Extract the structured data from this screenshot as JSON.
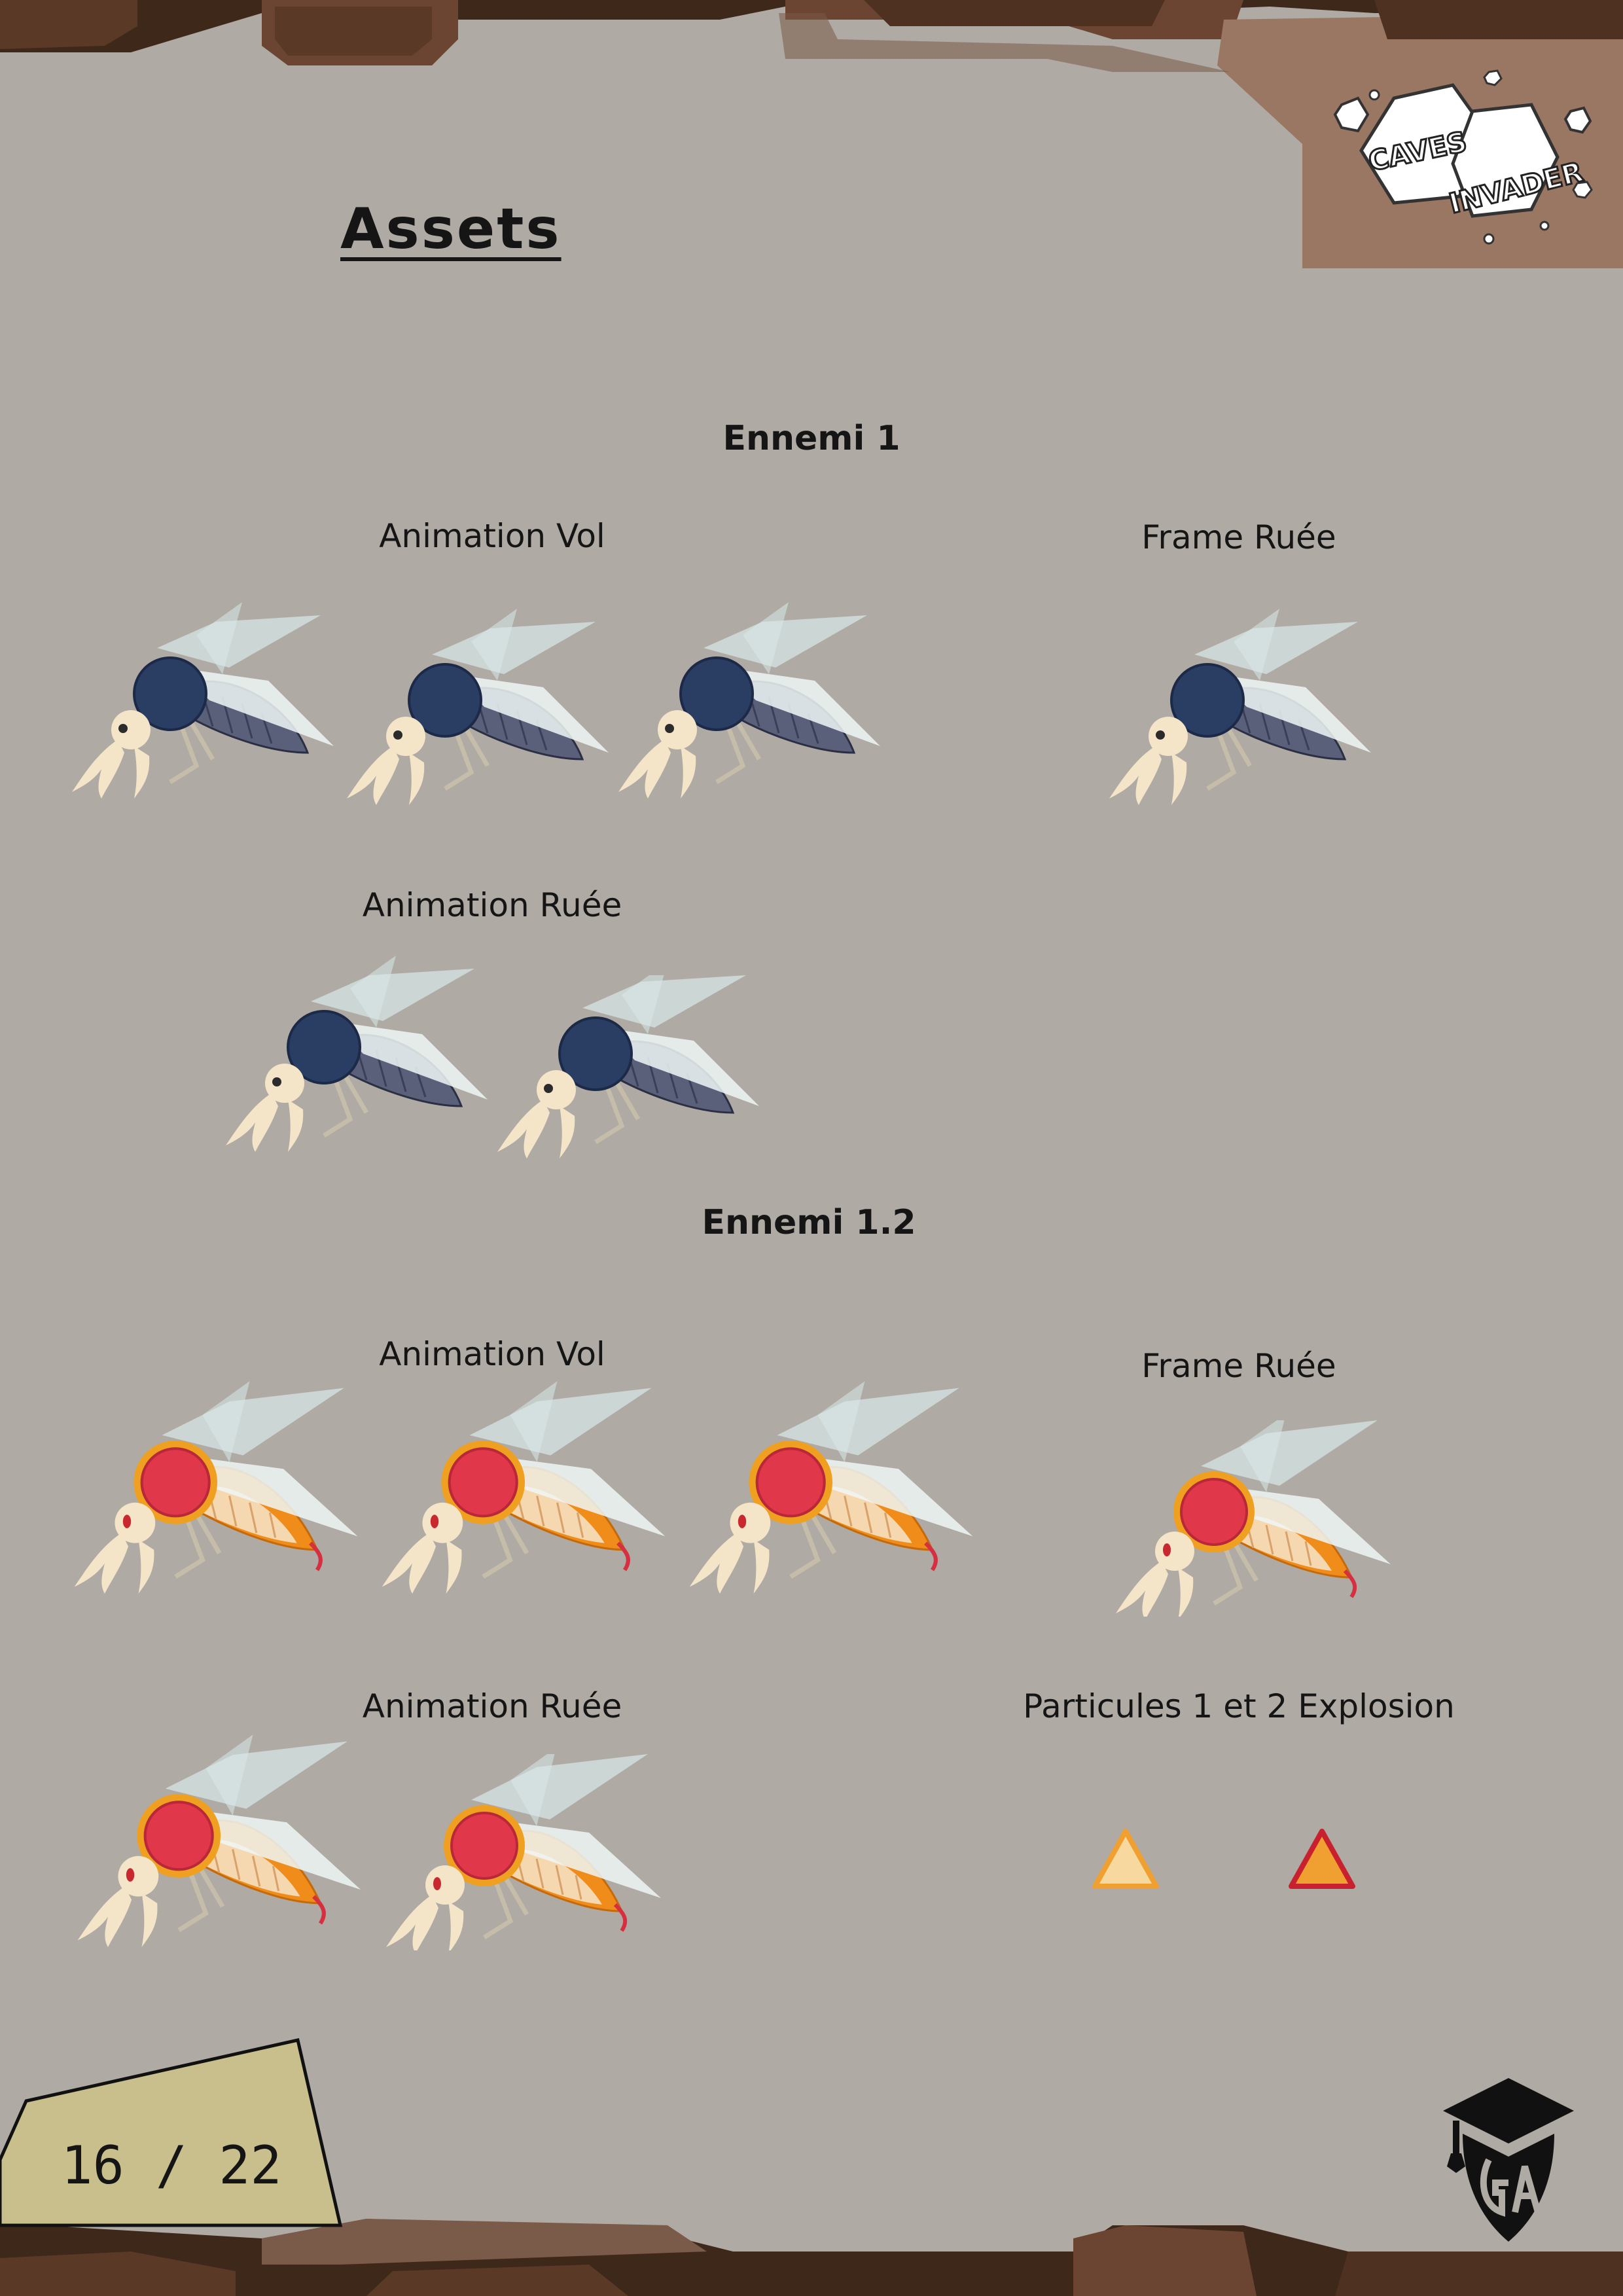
{
  "page": {
    "title": "Assets",
    "page_number": "16 / 22"
  },
  "logo": {
    "line1": "CAVES",
    "line2": "INVADER"
  },
  "enemy1": {
    "heading": "Ennemi 1",
    "fly_label": "Animation Vol",
    "rush_frame_label": "Frame Ruée",
    "rush_anim_label": "Animation Ruée"
  },
  "enemy12": {
    "heading": "Ennemi 1.2",
    "fly_label": "Animation Vol",
    "rush_frame_label": "Frame Ruée",
    "rush_anim_label": "Animation Ruée"
  },
  "particles": {
    "label": "Particules 1 et 2 Explosion"
  },
  "colors": {
    "page_bg": "#afaaa3",
    "rock_dark": "#4a2f1f",
    "rock_mid": "#7a5a48",
    "rock_light": "#9a7763",
    "enemy1_body": "#2a3d63",
    "enemy1_abdomen": "#5a5f7a",
    "enemy12_body": "#e0384a",
    "enemy12_abdomen": "#f08c1a",
    "skull": "#f4e4c8",
    "wing": "#e6f2f2",
    "page_tag": "#c8bf8c"
  },
  "icons": [
    "caves-invader-logo-icon",
    "mosquito-enemy-icon",
    "triangle-particle-icon",
    "ga-studio-logo-icon"
  ]
}
